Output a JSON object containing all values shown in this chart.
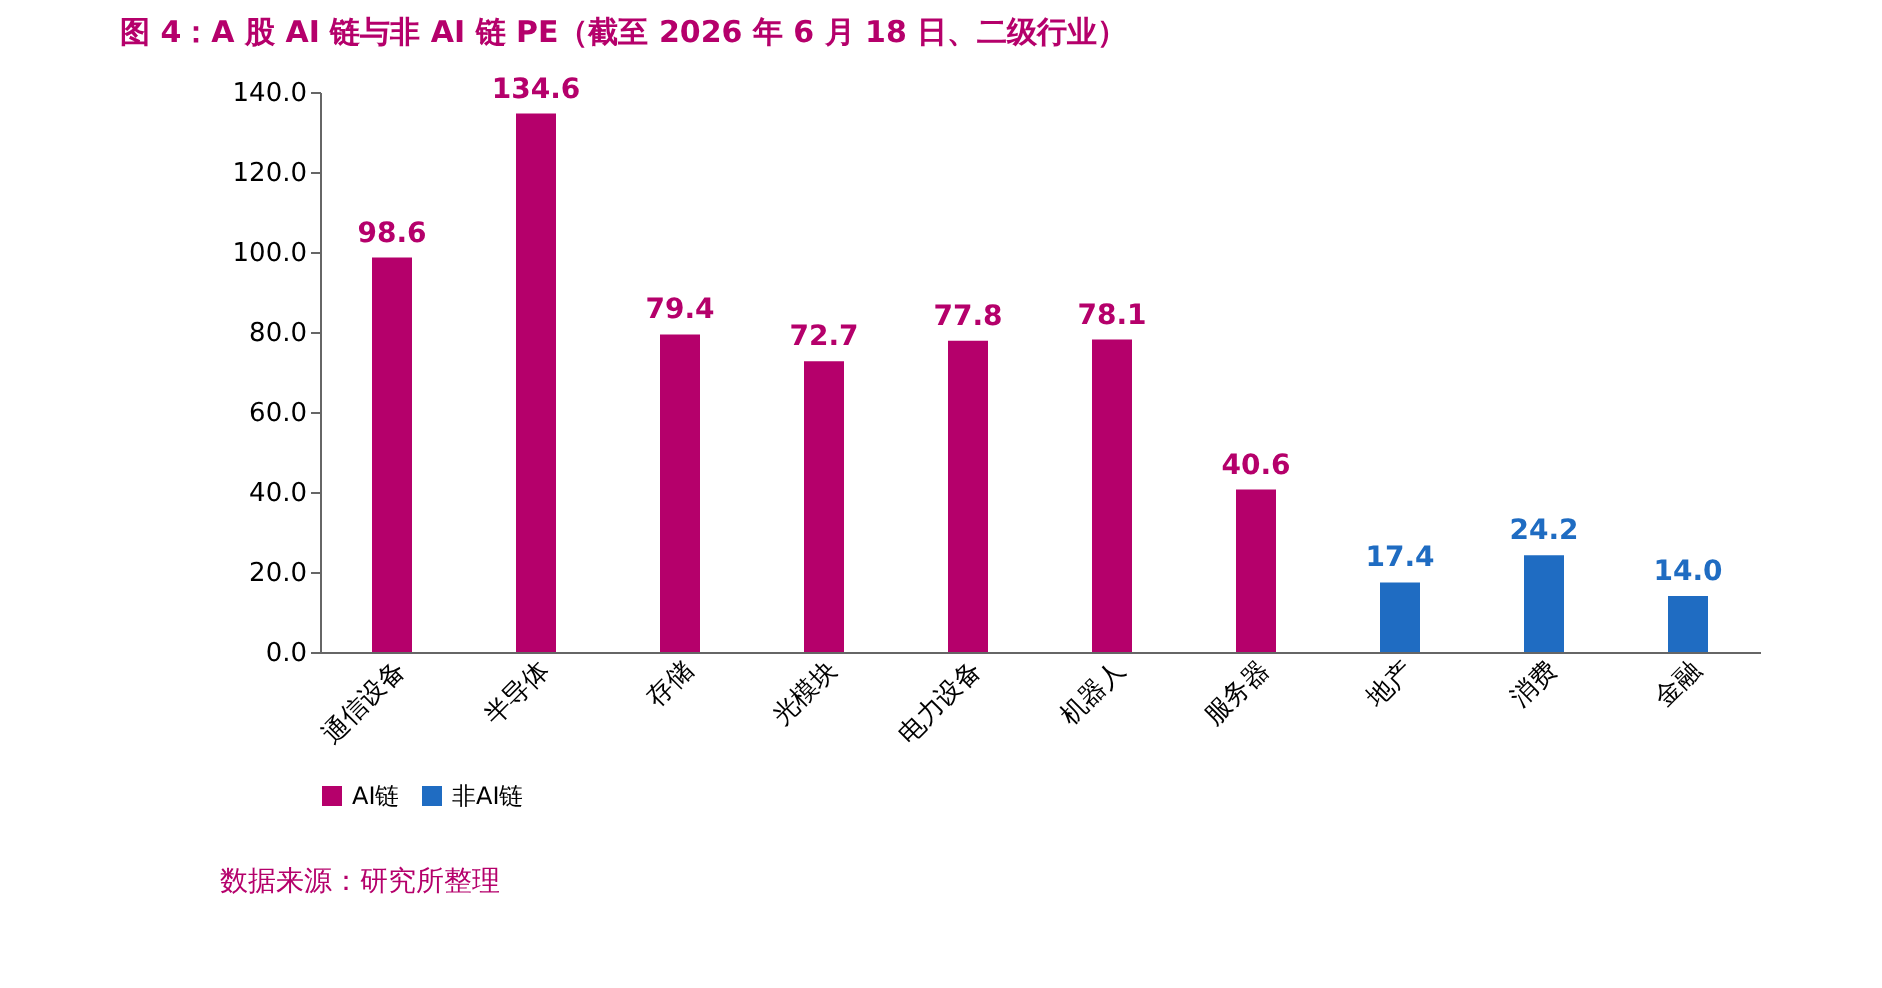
{
  "chart_data": {
    "type": "bar",
    "title": "图 4：A 股 AI 链与非 AI 链 PE（截至 2026 年 6 月 18 日、二级行业）",
    "categories": [
      "通信设备",
      "半导体",
      "存储",
      "光模块",
      "电力设备",
      "机器人",
      "服务器",
      "地产",
      "消费",
      "金融"
    ],
    "series": [
      {
        "name": "AI链",
        "color": "#b5006b",
        "values": [
          98.6,
          134.6,
          79.4,
          72.7,
          77.8,
          78.1,
          40.6,
          null,
          null,
          null
        ],
        "value_labels": [
          "98.6",
          "134.6",
          "79.4",
          "72.7",
          "77.8",
          "78.1",
          "40.6",
          null,
          null,
          null
        ]
      },
      {
        "name": "非AI链",
        "color": "#1f6cc2",
        "values": [
          null,
          null,
          null,
          null,
          null,
          null,
          null,
          17.4,
          24.2,
          14.0
        ],
        "value_labels": [
          null,
          null,
          null,
          null,
          null,
          null,
          null,
          "17.4",
          "24.2",
          "14.0"
        ]
      }
    ],
    "ylim": [
      0,
      140
    ],
    "yticks": [
      {
        "value": 0,
        "label": "0.0"
      },
      {
        "value": 20,
        "label": "20.0"
      },
      {
        "value": 40,
        "label": "40.0"
      },
      {
        "value": 60,
        "label": "60.0"
      },
      {
        "value": 80,
        "label": "80.0"
      },
      {
        "value": 100,
        "label": "100.0"
      },
      {
        "value": 120,
        "label": "120.0"
      },
      {
        "value": 140,
        "label": "140.0"
      }
    ],
    "grid": false,
    "legend": "bottom",
    "annotations": [
      "数据来源：研究所整理"
    ]
  }
}
